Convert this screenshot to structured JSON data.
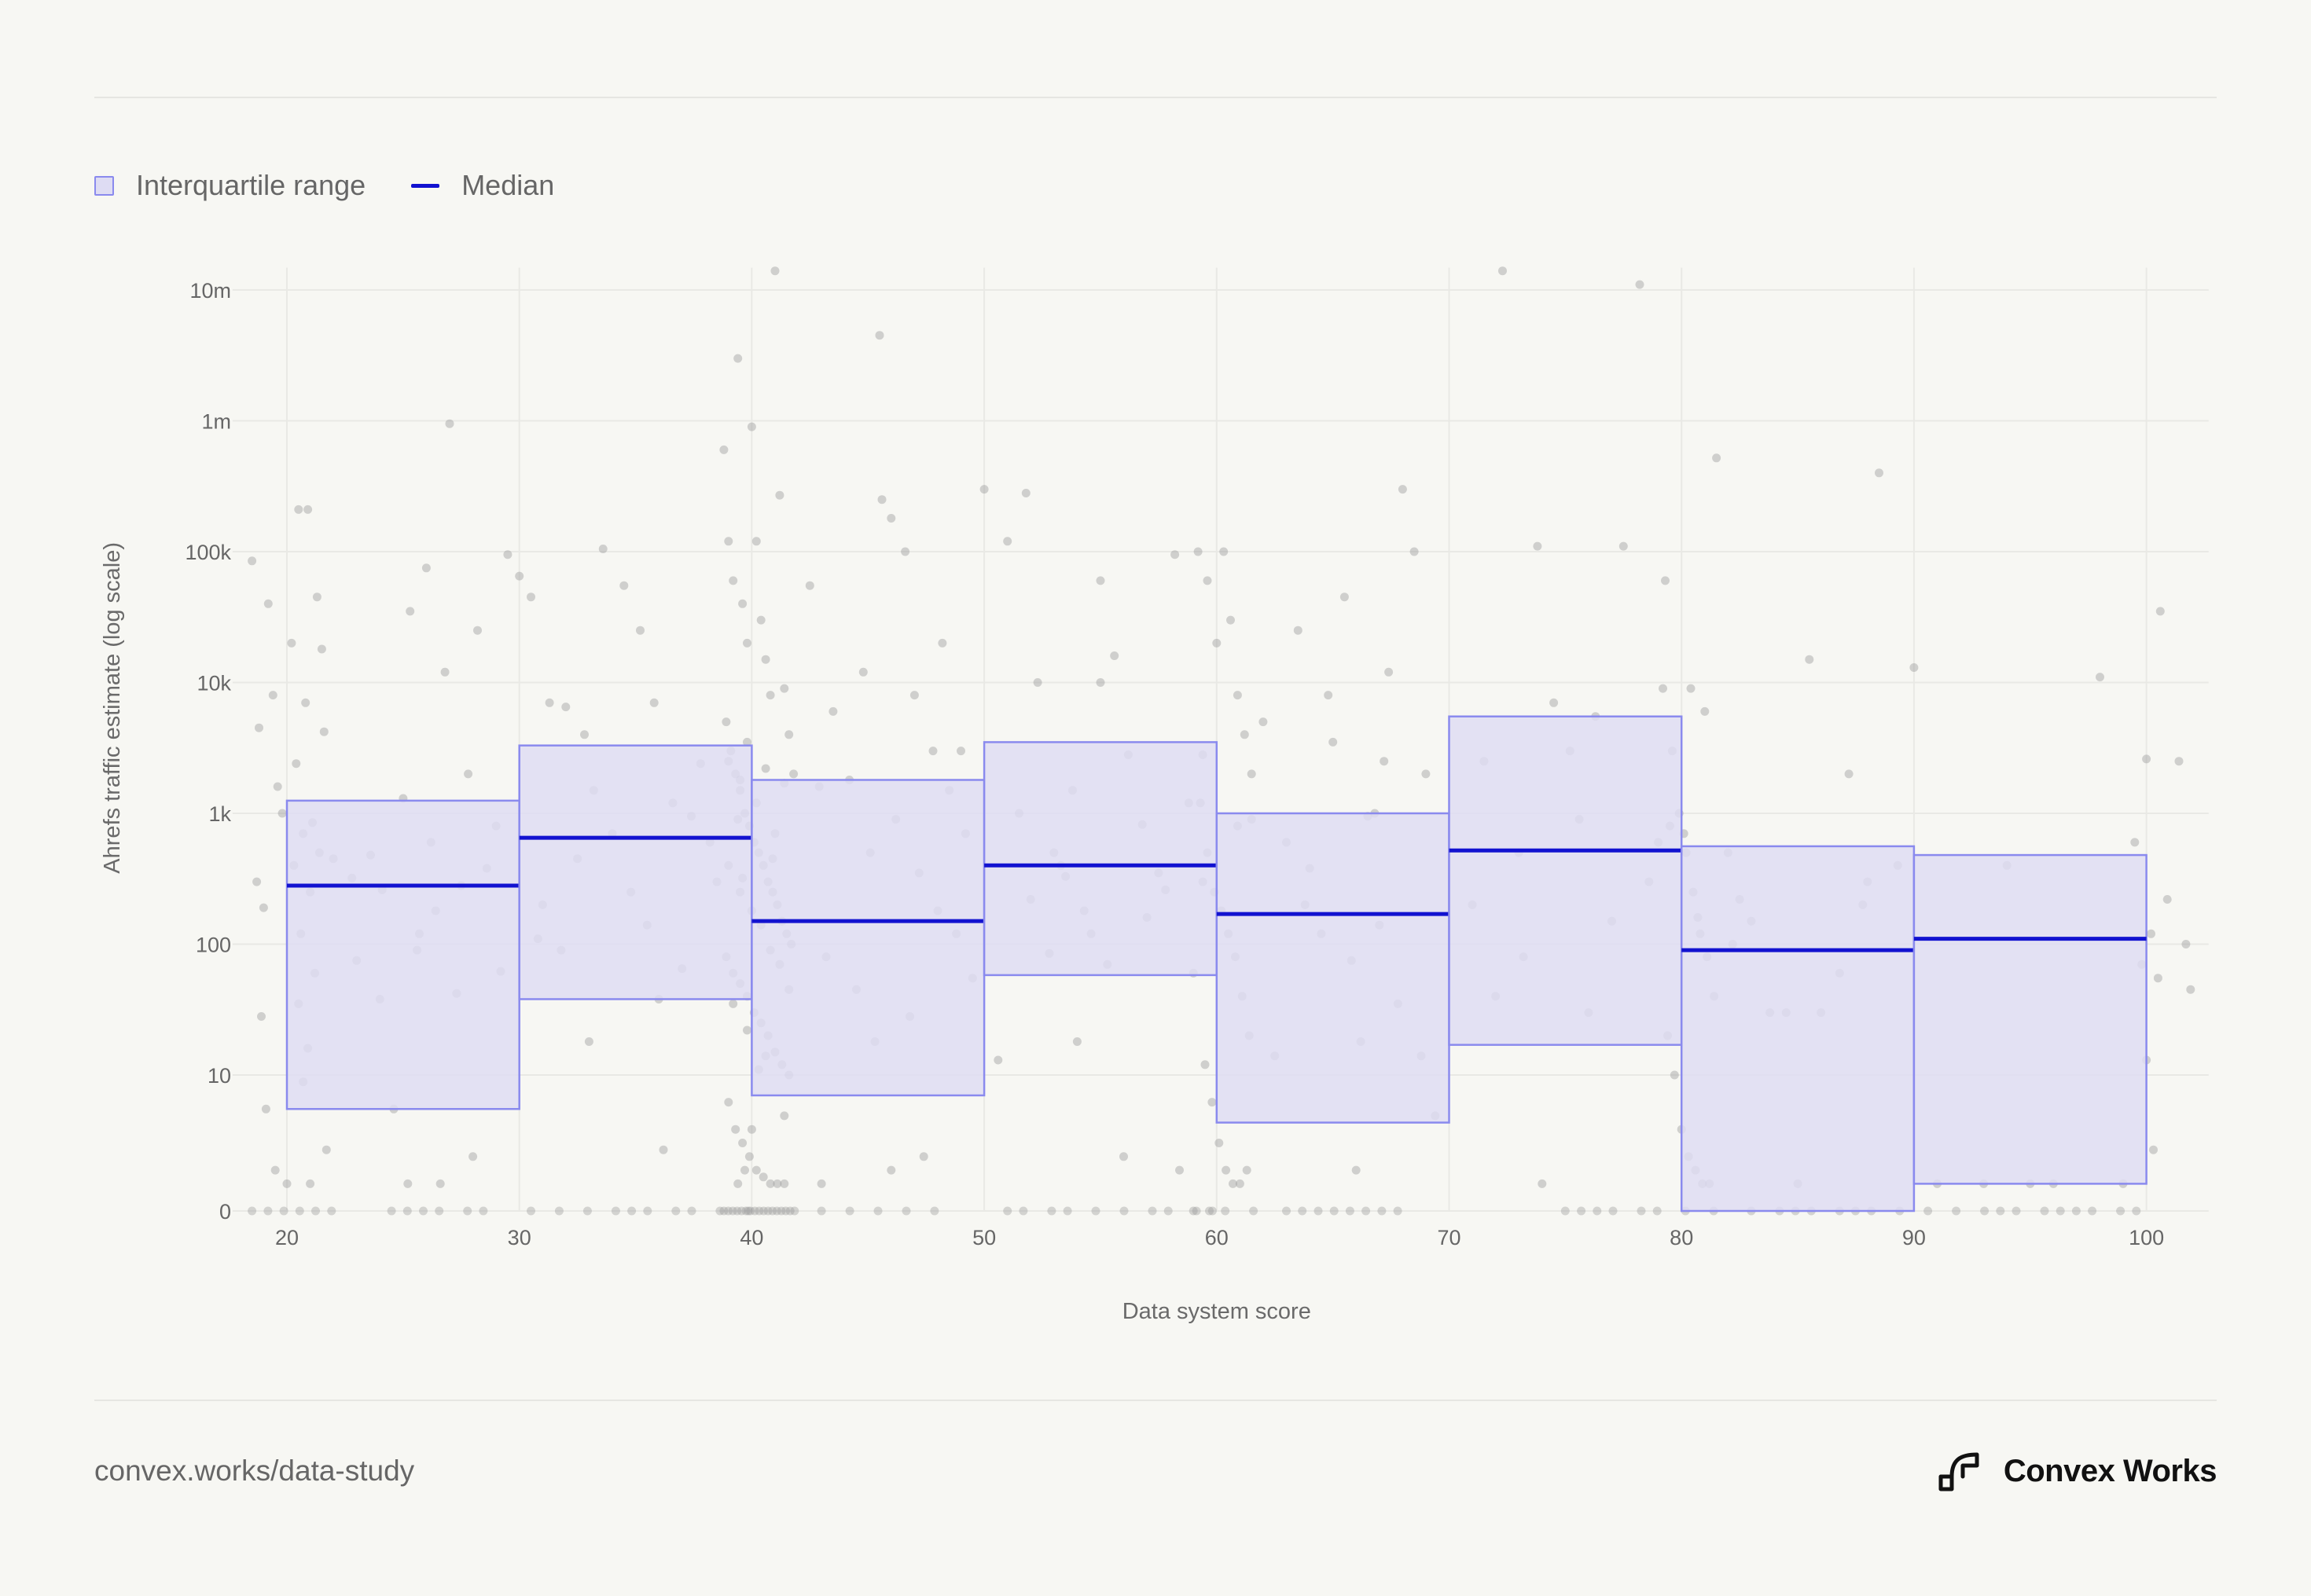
{
  "legend": {
    "iqr_label": "Interquartile range",
    "median_label": "Median"
  },
  "footer": {
    "url": "convex.works/data-study",
    "brand": "Convex Works"
  },
  "colors": {
    "box_fill": "#dedcf3",
    "box_stroke": "#8a8aee",
    "median": "#1212d0",
    "point": "#999999",
    "grid": "#e9e9e5",
    "background": "#f7f7f3"
  },
  "chart_data": {
    "type": "box",
    "title": "",
    "xlabel": "Data system score",
    "ylabel": "Ahrefs traffic estimate (log scale)",
    "y_scale": "symlog",
    "xlim": [
      18,
      102
    ],
    "ylim": [
      0,
      14000000
    ],
    "x_ticks": [
      20,
      30,
      40,
      50,
      60,
      70,
      80,
      90,
      100
    ],
    "y_ticks": [
      {
        "value": 0,
        "label": "0"
      },
      {
        "value": 10,
        "label": "10"
      },
      {
        "value": 100,
        "label": "100"
      },
      {
        "value": 1000,
        "label": "1k"
      },
      {
        "value": 10000,
        "label": "10k"
      },
      {
        "value": 100000,
        "label": "100k"
      },
      {
        "value": 1000000,
        "label": "1m"
      },
      {
        "value": 10000000,
        "label": "10m"
      }
    ],
    "grid": true,
    "legend_position": "top-left",
    "series": [
      {
        "name": "Interquartile range",
        "kind": "box"
      },
      {
        "name": "Median",
        "kind": "line"
      }
    ],
    "boxes": [
      {
        "x_start": 20,
        "x_end": 30,
        "q1": 7.5,
        "median": 280,
        "q3": 1250
      },
      {
        "x_start": 30,
        "x_end": 40,
        "q1": 38,
        "median": 650,
        "q3": 3300
      },
      {
        "x_start": 40,
        "x_end": 50,
        "q1": 8.5,
        "median": 150,
        "q3": 1800
      },
      {
        "x_start": 50,
        "x_end": 60,
        "q1": 58,
        "median": 400,
        "q3": 3500
      },
      {
        "x_start": 60,
        "x_end": 70,
        "q1": 6.5,
        "median": 170,
        "q3": 1000
      },
      {
        "x_start": 70,
        "x_end": 80,
        "q1": 17,
        "median": 520,
        "q3": 5500
      },
      {
        "x_start": 80,
        "x_end": 90,
        "q1": 0,
        "median": 90,
        "q3": 560
      },
      {
        "x_start": 90,
        "x_end": 100,
        "q1": 2,
        "median": 110,
        "q3": 480
      }
    ],
    "points": [
      [
        18.5,
        85000
      ],
      [
        18.8,
        4500
      ],
      [
        19.2,
        40000
      ],
      [
        19.6,
        1600
      ],
      [
        18.7,
        300
      ],
      [
        19.0,
        190
      ],
      [
        19.4,
        8000
      ],
      [
        18.9,
        28
      ],
      [
        19.1,
        7.5
      ],
      [
        19.8,
        1000
      ],
      [
        20.2,
        20000
      ],
      [
        20.5,
        210000
      ],
      [
        20.9,
        210000
      ],
      [
        21.3,
        45000
      ],
      [
        21.5,
        18000
      ],
      [
        20.8,
        7000
      ],
      [
        20.4,
        2400
      ],
      [
        21.6,
        4200
      ],
      [
        20.7,
        700
      ],
      [
        21.1,
        850
      ],
      [
        21.4,
        500
      ],
      [
        20.3,
        400
      ],
      [
        21.0,
        250
      ],
      [
        20.6,
        120
      ],
      [
        21.2,
        60
      ],
      [
        20.5,
        35
      ],
      [
        20.9,
        16
      ],
      [
        21.7,
        4.5
      ],
      [
        19.5,
        3
      ],
      [
        20.0,
        2
      ],
      [
        21.0,
        2
      ],
      [
        20.7,
        9.5
      ],
      [
        22.0,
        450
      ],
      [
        22.8,
        320
      ],
      [
        23.6,
        480
      ],
      [
        24.1,
        260
      ],
      [
        25.0,
        1300
      ],
      [
        25.6,
        90
      ],
      [
        26.2,
        600
      ],
      [
        26.8,
        12000
      ],
      [
        27.5,
        280
      ],
      [
        28.2,
        25000
      ],
      [
        29.0,
        800
      ],
      [
        29.5,
        95000
      ],
      [
        27.0,
        950000
      ],
      [
        26.0,
        75000
      ],
      [
        25.3,
        35000
      ],
      [
        24.6,
        7.5
      ],
      [
        25.7,
        120
      ],
      [
        27.3,
        42
      ],
      [
        28.6,
        380
      ],
      [
        29.2,
        62
      ],
      [
        24.0,
        38
      ],
      [
        26.4,
        180
      ],
      [
        27.8,
        2000
      ],
      [
        23.0,
        75
      ],
      [
        25.2,
        2
      ],
      [
        26.6,
        2
      ],
      [
        28.0,
        4
      ],
      [
        30.0,
        65000
      ],
      [
        30.5,
        45000
      ],
      [
        31.3,
        7000
      ],
      [
        32.0,
        6500
      ],
      [
        32.8,
        4000
      ],
      [
        33.6,
        105000
      ],
      [
        34.5,
        55000
      ],
      [
        35.2,
        25000
      ],
      [
        35.8,
        7000
      ],
      [
        36.6,
        1200
      ],
      [
        37.4,
        950
      ],
      [
        38.2,
        600
      ],
      [
        39.0,
        400
      ],
      [
        31.0,
        200
      ],
      [
        31.8,
        90
      ],
      [
        32.5,
        450
      ],
      [
        33.2,
        1500
      ],
      [
        34.0,
        700
      ],
      [
        34.8,
        250
      ],
      [
        35.5,
        140
      ],
      [
        36.0,
        38
      ],
      [
        37.0,
        65
      ],
      [
        38.5,
        300
      ],
      [
        39.5,
        1800
      ],
      [
        33.0,
        18
      ],
      [
        36.2,
        4.5
      ],
      [
        37.8,
        2400
      ],
      [
        30.8,
        110
      ],
      [
        38.8,
        600000
      ],
      [
        39.0,
        120000
      ],
      [
        39.2,
        60000
      ],
      [
        39.4,
        3000000
      ],
      [
        39.6,
        40000
      ],
      [
        39.8,
        20000
      ],
      [
        40.0,
        900000
      ],
      [
        40.2,
        120000
      ],
      [
        40.4,
        30000
      ],
      [
        40.6,
        15000
      ],
      [
        40.8,
        8000
      ],
      [
        41.0,
        14000000
      ],
      [
        41.2,
        270000
      ],
      [
        41.4,
        9000
      ],
      [
        41.6,
        4000
      ],
      [
        41.8,
        2000
      ],
      [
        38.9,
        5000
      ],
      [
        39.1,
        3000
      ],
      [
        39.3,
        2000
      ],
      [
        39.5,
        1500
      ],
      [
        39.7,
        1000
      ],
      [
        39.9,
        800
      ],
      [
        40.1,
        600
      ],
      [
        40.3,
        500
      ],
      [
        40.5,
        400
      ],
      [
        40.7,
        300
      ],
      [
        40.9,
        250
      ],
      [
        41.1,
        200
      ],
      [
        41.3,
        150
      ],
      [
        41.5,
        120
      ],
      [
        41.7,
        100
      ],
      [
        38.9,
        80
      ],
      [
        39.2,
        60
      ],
      [
        39.5,
        50
      ],
      [
        39.8,
        40
      ],
      [
        40.1,
        30
      ],
      [
        40.4,
        25
      ],
      [
        40.7,
        20
      ],
      [
        41.0,
        15
      ],
      [
        41.3,
        12
      ],
      [
        41.6,
        10
      ],
      [
        39.0,
        8
      ],
      [
        39.3,
        6
      ],
      [
        39.6,
        5
      ],
      [
        39.9,
        4
      ],
      [
        40.2,
        3
      ],
      [
        40.5,
        2.5
      ],
      [
        40.8,
        2
      ],
      [
        41.1,
        2
      ],
      [
        41.4,
        2
      ],
      [
        39.4,
        2
      ],
      [
        39.7,
        3
      ],
      [
        40.0,
        6
      ],
      [
        39.0,
        2500
      ],
      [
        39.4,
        900
      ],
      [
        39.8,
        3500
      ],
      [
        40.2,
        1200
      ],
      [
        40.6,
        2200
      ],
      [
        41.0,
        700
      ],
      [
        41.4,
        1700
      ],
      [
        39.6,
        320
      ],
      [
        40.0,
        180
      ],
      [
        40.4,
        140
      ],
      [
        40.8,
        90
      ],
      [
        41.2,
        70
      ],
      [
        41.6,
        45
      ],
      [
        39.2,
        35
      ],
      [
        39.8,
        22
      ],
      [
        40.6,
        14
      ],
      [
        41.4,
        7
      ],
      [
        40.3,
        11
      ],
      [
        39.5,
        250
      ],
      [
        40.9,
        450
      ],
      [
        42.5,
        55000
      ],
      [
        43.5,
        6000
      ],
      [
        44.2,
        1800
      ],
      [
        45.1,
        500
      ],
      [
        45.6,
        250000
      ],
      [
        46.0,
        180000
      ],
      [
        46.6,
        100000
      ],
      [
        47.0,
        8000
      ],
      [
        47.8,
        3000
      ],
      [
        48.5,
        1500
      ],
      [
        49.2,
        700
      ],
      [
        44.8,
        12000
      ],
      [
        46.2,
        900
      ],
      [
        47.2,
        350
      ],
      [
        48.0,
        180
      ],
      [
        48.8,
        120
      ],
      [
        43.2,
        80
      ],
      [
        44.5,
        45
      ],
      [
        45.3,
        18
      ],
      [
        46.8,
        28
      ],
      [
        49.5,
        55
      ],
      [
        43.0,
        2
      ],
      [
        47.4,
        4
      ],
      [
        46.0,
        3
      ],
      [
        45.5,
        4500000
      ],
      [
        49.0,
        3000
      ],
      [
        48.2,
        20000
      ],
      [
        42.9,
        1600
      ],
      [
        50.0,
        300000
      ],
      [
        51.0,
        120000
      ],
      [
        51.8,
        280000
      ],
      [
        52.3,
        10000
      ],
      [
        53.0,
        500
      ],
      [
        53.8,
        1500
      ],
      [
        54.3,
        180
      ],
      [
        55.0,
        60000
      ],
      [
        55.6,
        16000
      ],
      [
        56.2,
        2800
      ],
      [
        56.8,
        820
      ],
      [
        57.5,
        350
      ],
      [
        58.2,
        95000
      ],
      [
        58.8,
        1200
      ],
      [
        59.4,
        2800
      ],
      [
        52.0,
        220
      ],
      [
        52.8,
        85
      ],
      [
        53.5,
        330
      ],
      [
        54.6,
        120
      ],
      [
        55.3,
        70
      ],
      [
        57.0,
        160
      ],
      [
        57.8,
        260
      ],
      [
        59.0,
        60
      ],
      [
        50.6,
        13
      ],
      [
        54.0,
        18
      ],
      [
        56.0,
        4
      ],
      [
        58.4,
        3
      ],
      [
        55.0,
        10000
      ],
      [
        51.5,
        1000
      ],
      [
        53.3,
        400
      ],
      [
        59.2,
        100000
      ],
      [
        59.6,
        60000
      ],
      [
        60.0,
        20000
      ],
      [
        60.3,
        100000
      ],
      [
        60.6,
        30000
      ],
      [
        60.9,
        8000
      ],
      [
        61.2,
        4000
      ],
      [
        61.5,
        2000
      ],
      [
        59.3,
        1200
      ],
      [
        59.6,
        500
      ],
      [
        59.9,
        250
      ],
      [
        60.2,
        180
      ],
      [
        60.5,
        120
      ],
      [
        60.8,
        80
      ],
      [
        61.1,
        40
      ],
      [
        61.4,
        20
      ],
      [
        59.5,
        12
      ],
      [
        59.8,
        8
      ],
      [
        60.1,
        5
      ],
      [
        60.4,
        3
      ],
      [
        60.7,
        2
      ],
      [
        61.0,
        2
      ],
      [
        61.3,
        3
      ],
      [
        60.9,
        800
      ],
      [
        61.5,
        900
      ],
      [
        59.4,
        300
      ],
      [
        62.0,
        5000
      ],
      [
        62.5,
        14
      ],
      [
        63.5,
        25000
      ],
      [
        64.0,
        380
      ],
      [
        65.0,
        3500
      ],
      [
        65.5,
        45000
      ],
      [
        66.2,
        18
      ],
      [
        66.8,
        1000
      ],
      [
        67.4,
        12000
      ],
      [
        68.0,
        300000
      ],
      [
        68.5,
        100000
      ],
      [
        69.0,
        2000
      ],
      [
        63.0,
        600
      ],
      [
        64.5,
        120
      ],
      [
        65.8,
        75
      ],
      [
        66.5,
        950
      ],
      [
        67.0,
        140
      ],
      [
        67.8,
        35
      ],
      [
        68.8,
        14
      ],
      [
        69.4,
        7
      ],
      [
        63.8,
        200
      ],
      [
        66.0,
        3
      ],
      [
        67.2,
        2500
      ],
      [
        64.8,
        8000
      ],
      [
        71.5,
        2500
      ],
      [
        72.0,
        40
      ],
      [
        73.0,
        500
      ],
      [
        73.8,
        110000
      ],
      [
        74.5,
        7000
      ],
      [
        75.2,
        3000
      ],
      [
        75.6,
        900
      ],
      [
        76.3,
        5500
      ],
      [
        77.5,
        110000
      ],
      [
        78.2,
        11000000
      ],
      [
        79.0,
        600
      ],
      [
        79.5,
        800
      ],
      [
        72.3,
        14000000
      ],
      [
        74.0,
        2
      ],
      [
        76.0,
        30
      ],
      [
        78.6,
        300
      ],
      [
        79.2,
        9000
      ],
      [
        71.0,
        200
      ],
      [
        73.2,
        80
      ],
      [
        77.0,
        150
      ],
      [
        79.3,
        60000
      ],
      [
        79.6,
        3000
      ],
      [
        79.9,
        1000
      ],
      [
        80.2,
        500
      ],
      [
        80.5,
        250
      ],
      [
        80.8,
        120
      ],
      [
        81.1,
        80
      ],
      [
        81.4,
        40
      ],
      [
        79.4,
        20
      ],
      [
        79.7,
        10
      ],
      [
        80.0,
        6
      ],
      [
        80.3,
        4
      ],
      [
        80.6,
        3
      ],
      [
        80.9,
        2
      ],
      [
        81.2,
        2
      ],
      [
        81.5,
        520000
      ],
      [
        80.4,
        9000
      ],
      [
        81.0,
        6000
      ],
      [
        80.1,
        700
      ],
      [
        80.7,
        160
      ],
      [
        82.0,
        500
      ],
      [
        82.5,
        220
      ],
      [
        83.0,
        150
      ],
      [
        83.8,
        30
      ],
      [
        84.5,
        30
      ],
      [
        85.5,
        15000
      ],
      [
        86.0,
        30
      ],
      [
        86.8,
        60
      ],
      [
        87.2,
        2000
      ],
      [
        88.0,
        300
      ],
      [
        88.5,
        400000
      ],
      [
        89.3,
        400
      ],
      [
        90.0,
        13000
      ],
      [
        85.0,
        2
      ],
      [
        82.2,
        100
      ],
      [
        87.8,
        200
      ],
      [
        91.0,
        2
      ],
      [
        93.0,
        2
      ],
      [
        94.0,
        400
      ],
      [
        95.0,
        2
      ],
      [
        98.0,
        11000
      ],
      [
        99.0,
        2
      ],
      [
        99.5,
        600
      ],
      [
        100.0,
        2600
      ],
      [
        100.2,
        120
      ],
      [
        100.6,
        35000
      ],
      [
        100.9,
        220
      ],
      [
        101.4,
        2500
      ],
      [
        101.7,
        100
      ],
      [
        101.9,
        45
      ],
      [
        100.5,
        55
      ],
      [
        100.0,
        13
      ],
      [
        100.3,
        4.5
      ],
      [
        99.8,
        70
      ],
      [
        96.0,
        2
      ]
    ]
  }
}
